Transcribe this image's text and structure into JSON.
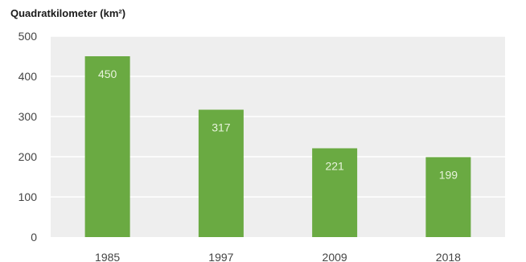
{
  "chart_data": {
    "type": "bar",
    "title": "",
    "xlabel": "",
    "ylabel": "Quadratkilometer (km²)",
    "categories": [
      "1985",
      "1997",
      "2009",
      "2018"
    ],
    "values": [
      450,
      317,
      221,
      199
    ],
    "value_labels": [
      "450",
      "317",
      "221",
      "199"
    ],
    "y_ticks": [
      0,
      100,
      200,
      300,
      400,
      500
    ],
    "y_tick_labels": [
      "0",
      "100",
      "200",
      "300",
      "400",
      "500"
    ],
    "ylim": [
      0,
      500
    ],
    "grid": true,
    "legend": "none",
    "colors": {
      "bar": "#6aaa42",
      "background": "#eeeeee",
      "grid": "#ffffff"
    }
  }
}
